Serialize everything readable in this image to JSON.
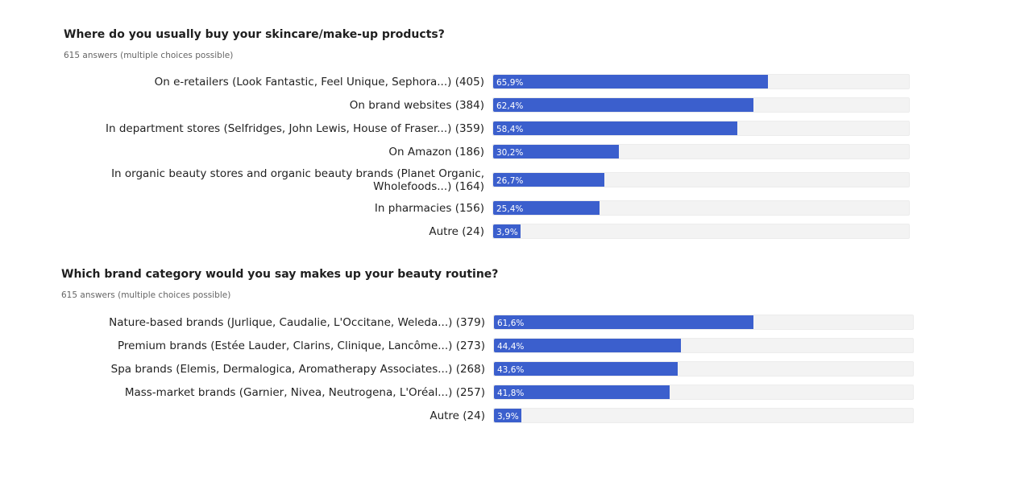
{
  "chart_data": [
    {
      "type": "bar",
      "title": "Where do you usually buy your skincare/make-up products?",
      "subtitle": "615 answers (multiple choices possible)",
      "xlim": [
        0,
        100
      ],
      "bars": [
        {
          "label": "On e-retailers (Look Fantastic, Feel Unique, Sephora...) (405)",
          "value": 65.9,
          "display": "65,9%"
        },
        {
          "label": "On brand websites (384)",
          "value": 62.4,
          "display": "62,4%"
        },
        {
          "label": "In department stores (Selfridges, John Lewis, House of Fraser...) (359)",
          "value": 58.4,
          "display": "58,4%"
        },
        {
          "label": "On Amazon (186)",
          "value": 30.2,
          "display": "30,2%"
        },
        {
          "label": "In organic beauty stores and organic beauty brands (Planet Organic, Wholefoods...) (164)",
          "value": 26.7,
          "display": "26,7%"
        },
        {
          "label": "In pharmacies (156)",
          "value": 25.4,
          "display": "25,4%"
        },
        {
          "label": "Autre (24)",
          "value": 3.9,
          "display": "3,9%"
        }
      ]
    },
    {
      "type": "bar",
      "title": "Which brand category would you say makes up your beauty routine?",
      "subtitle": "615 answers (multiple choices possible)",
      "xlim": [
        0,
        100
      ],
      "bars": [
        {
          "label": "Nature-based brands (Jurlique, Caudalie, L'Occitane, Weleda...) (379)",
          "value": 61.6,
          "display": "61,6%"
        },
        {
          "label": "Premium brands (Estée Lauder, Clarins, Clinique, Lancôme...) (273)",
          "value": 44.4,
          "display": "44,4%"
        },
        {
          "label": "Spa brands (Elemis, Dermalogica, Aromatherapy Associates...) (268)",
          "value": 43.6,
          "display": "43,6%"
        },
        {
          "label": "Mass-market brands (Garnier, Nivea, Neutrogena, L'Oréal...) (257)",
          "value": 41.8,
          "display": "41,8%"
        },
        {
          "label": "Autre (24)",
          "value": 3.9,
          "display": "3,9%"
        }
      ]
    }
  ],
  "colors": {
    "bar": "#3b5fcd",
    "track": "#f3f3f3"
  }
}
